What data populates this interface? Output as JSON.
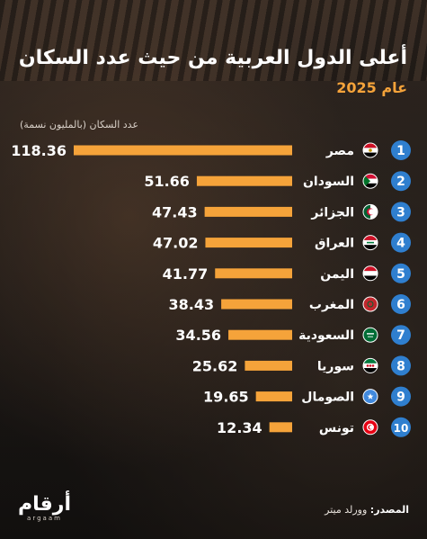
{
  "header": {
    "title": "أعلى الدول العربية من حيث عدد السكان",
    "subtitle": "عام 2025"
  },
  "source": {
    "label": "المصدر:",
    "value": "وورلد ميتر"
  },
  "logo": {
    "main": "أرقام",
    "sub": "argaam"
  },
  "colors": {
    "bar": "#f5a33a",
    "rank_badge": "#2f7fcf",
    "text": "#ffffff",
    "accent": "#f5a33a"
  },
  "chart_data": {
    "type": "bar",
    "orientation": "horizontal",
    "title": "أعلى الدول العربية من حيث عدد السكان",
    "subtitle": "عام 2025",
    "axis_label": "عدد السكان (بالمليون نسمة)",
    "ranks": [
      "1",
      "2",
      "3",
      "4",
      "5",
      "6",
      "7",
      "8",
      "9",
      "10"
    ],
    "categories": [
      "مصر",
      "السودان",
      "الجزائر",
      "العراق",
      "اليمن",
      "المغرب",
      "السعودية",
      "سوريا",
      "الصومال",
      "تونس"
    ],
    "flags": [
      "egypt-flag",
      "sudan-flag",
      "algeria-flag",
      "iraq-flag",
      "yemen-flag",
      "morocco-flag",
      "saudi-arabia-flag",
      "syria-flag",
      "somalia-flag",
      "tunisia-flag"
    ],
    "value_labels": [
      "118.36",
      "51.66",
      "47.43",
      "47.02",
      "41.77",
      "38.43",
      "34.56",
      "25.62",
      "19.65",
      "12.34"
    ],
    "values": [
      118.36,
      51.66,
      47.43,
      47.02,
      41.77,
      38.43,
      34.56,
      25.62,
      19.65,
      12.34
    ],
    "xlim": [
      0,
      118.36
    ]
  }
}
